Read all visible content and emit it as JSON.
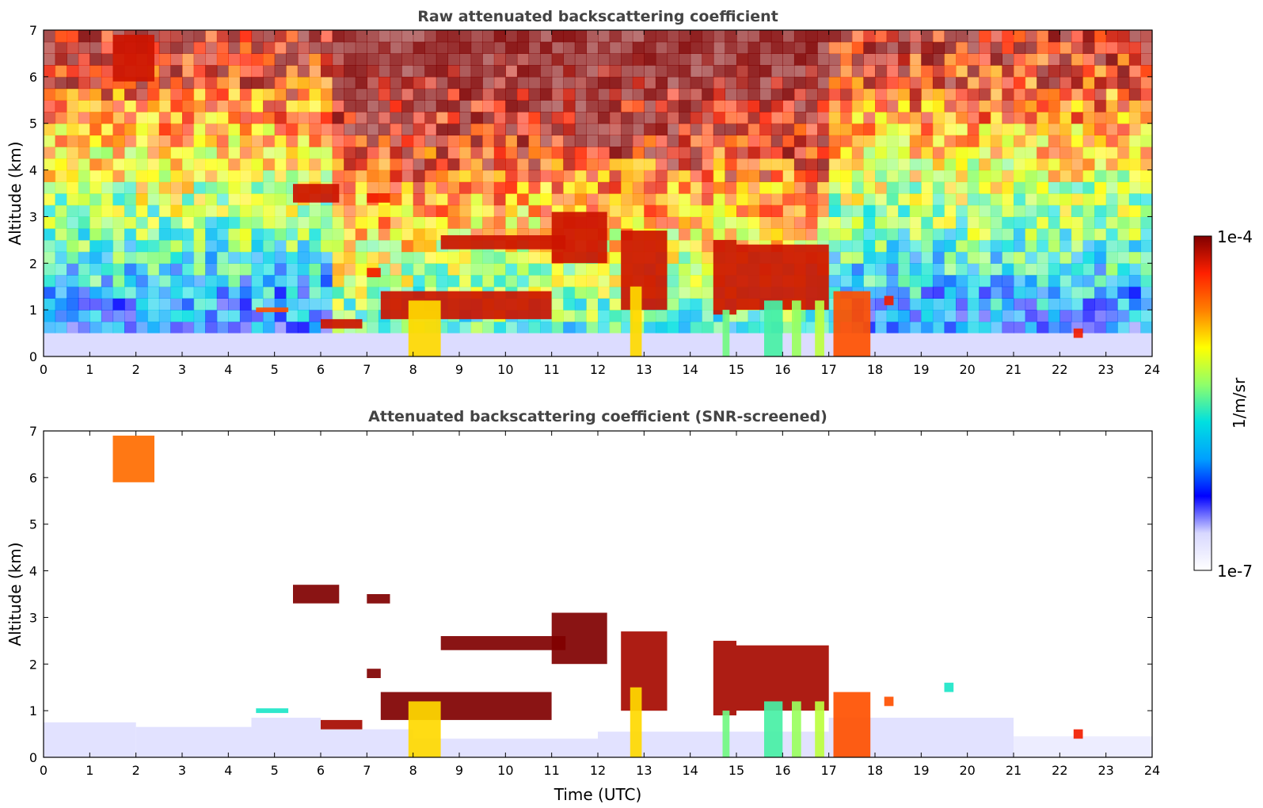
{
  "colors": {
    "background": "#ffffff",
    "axis": "#000000",
    "title_text": "#444444",
    "colormap": [
      "#ffffff",
      "#d8d8ff",
      "#0000ff",
      "#00a0ff",
      "#00e0e0",
      "#8fff6a",
      "#ffff00",
      "#ff8000",
      "#ff2000",
      "#800000"
    ]
  },
  "colorbar": {
    "label": "1/m/sr",
    "max_label": "1e-4",
    "min_label": "1e-7",
    "scale": "log",
    "range": [
      1e-07,
      0.0001
    ]
  },
  "chart_data": [
    {
      "type": "heatmap",
      "title": "Raw attenuated backscattering coefficient",
      "xlabel": "",
      "ylabel": "Altitude (km)",
      "xlim": [
        0,
        24
      ],
      "ylim": [
        0,
        7
      ],
      "x_ticks": [
        0,
        1,
        2,
        3,
        4,
        5,
        6,
        7,
        8,
        9,
        10,
        11,
        12,
        13,
        14,
        15,
        16,
        17,
        18,
        19,
        20,
        21,
        22,
        23,
        24
      ],
      "y_ticks": [
        0,
        1,
        2,
        3,
        4,
        5,
        6,
        7
      ],
      "grid": false,
      "background": "noisy",
      "features": [
        {
          "kind": "boundary_layer",
          "t": [
            0,
            24
          ],
          "z": [
            0,
            0.5
          ],
          "log_value": -6.7
        },
        {
          "kind": "aerosol_layer",
          "t": [
            4.6,
            5.3
          ],
          "z": [
            0.95,
            1.05
          ],
          "log_value": -4.5
        },
        {
          "kind": "cloud",
          "t": [
            1.5,
            2.4
          ],
          "z": [
            5.9,
            6.9
          ],
          "log_value": -4.2
        },
        {
          "kind": "cloud",
          "t": [
            5.4,
            6.4
          ],
          "z": [
            3.3,
            3.7
          ],
          "log_value": -4.2
        },
        {
          "kind": "cloud",
          "t": [
            7.0,
            7.5
          ],
          "z": [
            3.3,
            3.5
          ],
          "log_value": -4.3
        },
        {
          "kind": "cloud",
          "t": [
            6.0,
            6.9
          ],
          "z": [
            0.6,
            0.8
          ],
          "log_value": -4.2
        },
        {
          "kind": "cloud",
          "t": [
            7.0,
            7.3
          ],
          "z": [
            1.7,
            1.9
          ],
          "log_value": -4.3
        },
        {
          "kind": "cloud",
          "t": [
            7.3,
            11.0
          ],
          "z": [
            0.8,
            1.4
          ],
          "log_value": -4.2
        },
        {
          "kind": "cloud",
          "t": [
            8.6,
            11.3
          ],
          "z": [
            2.3,
            2.6
          ],
          "log_value": -4.2
        },
        {
          "kind": "cloud",
          "t": [
            11.0,
            12.2
          ],
          "z": [
            2.0,
            3.1
          ],
          "log_value": -4.2
        },
        {
          "kind": "cloud",
          "t": [
            12.5,
            13.5
          ],
          "z": [
            1.0,
            2.7
          ],
          "log_value": -4.2
        },
        {
          "kind": "cloud",
          "t": [
            14.5,
            15.0
          ],
          "z": [
            0.9,
            2.5
          ],
          "log_value": -4.2
        },
        {
          "kind": "cloud",
          "t": [
            15.0,
            17.0
          ],
          "z": [
            1.0,
            2.4
          ],
          "log_value": -4.2
        },
        {
          "kind": "cloud",
          "t": [
            18.2,
            18.4
          ],
          "z": [
            1.1,
            1.3
          ],
          "log_value": -4.3
        },
        {
          "kind": "cloud",
          "t": [
            22.3,
            22.5
          ],
          "z": [
            0.4,
            0.6
          ],
          "log_value": -4.3
        },
        {
          "kind": "precipitation",
          "t": [
            7.9,
            8.6
          ],
          "z": [
            0,
            1.2
          ],
          "log_value": -4.9
        },
        {
          "kind": "precipitation",
          "t": [
            12.7,
            12.95
          ],
          "z": [
            0,
            1.5
          ],
          "log_value": -4.9
        },
        {
          "kind": "precipitation",
          "t": [
            14.7,
            14.85
          ],
          "z": [
            0,
            1.0
          ],
          "log_value": -5.4
        },
        {
          "kind": "precipitation",
          "t": [
            15.6,
            16.0
          ],
          "z": [
            0,
            1.2
          ],
          "log_value": -5.5
        },
        {
          "kind": "precipitation",
          "t": [
            16.2,
            16.4
          ],
          "z": [
            0,
            1.2
          ],
          "log_value": -5.3
        },
        {
          "kind": "precipitation",
          "t": [
            16.7,
            16.9
          ],
          "z": [
            0,
            1.2
          ],
          "log_value": -5.2
        },
        {
          "kind": "precipitation",
          "t": [
            17.1,
            17.9
          ],
          "z": [
            0,
            1.4
          ],
          "log_value": -4.5
        }
      ]
    },
    {
      "type": "heatmap",
      "title": "Attenuated backscattering coefficient (SNR-screened)",
      "xlabel": "Time (UTC)",
      "ylabel": "Altitude (km)",
      "xlim": [
        0,
        24
      ],
      "ylim": [
        0,
        7
      ],
      "x_ticks": [
        0,
        1,
        2,
        3,
        4,
        5,
        6,
        7,
        8,
        9,
        10,
        11,
        12,
        13,
        14,
        15,
        16,
        17,
        18,
        19,
        20,
        21,
        22,
        23,
        24
      ],
      "y_ticks": [
        0,
        1,
        2,
        3,
        4,
        5,
        6,
        7
      ],
      "grid": false,
      "background": "screened",
      "features": [
        {
          "kind": "boundary_layer",
          "t": [
            0,
            2
          ],
          "z": [
            0,
            0.75
          ],
          "log_value": -6.75
        },
        {
          "kind": "boundary_layer",
          "t": [
            2,
            4.5
          ],
          "z": [
            0,
            0.65
          ],
          "log_value": -6.75
        },
        {
          "kind": "boundary_layer",
          "t": [
            4.5,
            6
          ],
          "z": [
            0,
            0.85
          ],
          "log_value": -6.75
        },
        {
          "kind": "boundary_layer",
          "t": [
            6,
            8
          ],
          "z": [
            0,
            0.6
          ],
          "log_value": -6.75
        },
        {
          "kind": "boundary_layer",
          "t": [
            8,
            12
          ],
          "z": [
            0,
            0.4
          ],
          "log_value": -6.75
        },
        {
          "kind": "boundary_layer",
          "t": [
            12,
            17
          ],
          "z": [
            0,
            0.55
          ],
          "log_value": -6.75
        },
        {
          "kind": "boundary_layer",
          "t": [
            17,
            21
          ],
          "z": [
            0,
            0.85
          ],
          "log_value": -6.75
        },
        {
          "kind": "boundary_layer",
          "t": [
            21,
            24
          ],
          "z": [
            0,
            0.45
          ],
          "log_value": -6.85
        },
        {
          "kind": "aerosol_layer",
          "t": [
            4.6,
            5.3
          ],
          "z": [
            0.95,
            1.05
          ],
          "log_value": -5.6
        },
        {
          "kind": "cloud",
          "t": [
            1.5,
            2.4
          ],
          "z": [
            5.9,
            6.9
          ],
          "log_value": -4.6
        },
        {
          "kind": "cloud",
          "t": [
            5.4,
            6.4
          ],
          "z": [
            3.3,
            3.7
          ],
          "log_value": -3.9
        },
        {
          "kind": "cloud",
          "t": [
            7.0,
            7.5
          ],
          "z": [
            3.3,
            3.5
          ],
          "log_value": -3.9
        },
        {
          "kind": "cloud",
          "t": [
            6.0,
            6.9
          ],
          "z": [
            0.6,
            0.8
          ],
          "log_value": -4.1
        },
        {
          "kind": "cloud",
          "t": [
            7.0,
            7.3
          ],
          "z": [
            1.7,
            1.9
          ],
          "log_value": -4.0
        },
        {
          "kind": "cloud",
          "t": [
            7.3,
            11.0
          ],
          "z": [
            0.8,
            1.4
          ],
          "log_value": -4.0
        },
        {
          "kind": "cloud",
          "t": [
            8.6,
            11.3
          ],
          "z": [
            2.3,
            2.6
          ],
          "log_value": -3.9
        },
        {
          "kind": "cloud",
          "t": [
            11.0,
            12.2
          ],
          "z": [
            2.0,
            3.1
          ],
          "log_value": -4.0
        },
        {
          "kind": "cloud",
          "t": [
            12.5,
            13.5
          ],
          "z": [
            1.0,
            2.7
          ],
          "log_value": -4.1
        },
        {
          "kind": "cloud",
          "t": [
            14.5,
            15.0
          ],
          "z": [
            0.9,
            2.5
          ],
          "log_value": -4.1
        },
        {
          "kind": "cloud",
          "t": [
            15.0,
            17.0
          ],
          "z": [
            1.0,
            2.4
          ],
          "log_value": -4.1
        },
        {
          "kind": "cloud",
          "t": [
            18.2,
            18.4
          ],
          "z": [
            1.1,
            1.3
          ],
          "log_value": -4.5
        },
        {
          "kind": "cloud",
          "t": [
            19.5,
            19.7
          ],
          "z": [
            1.4,
            1.6
          ],
          "log_value": -5.6
        },
        {
          "kind": "cloud",
          "t": [
            22.3,
            22.5
          ],
          "z": [
            0.4,
            0.6
          ],
          "log_value": -4.3
        },
        {
          "kind": "precipitation",
          "t": [
            7.9,
            8.6
          ],
          "z": [
            0,
            1.2
          ],
          "log_value": -4.9
        },
        {
          "kind": "precipitation",
          "t": [
            12.7,
            12.95
          ],
          "z": [
            0,
            1.5
          ],
          "log_value": -4.9
        },
        {
          "kind": "precipitation",
          "t": [
            14.7,
            14.85
          ],
          "z": [
            0,
            1.0
          ],
          "log_value": -5.4
        },
        {
          "kind": "precipitation",
          "t": [
            15.6,
            16.0
          ],
          "z": [
            0,
            1.2
          ],
          "log_value": -5.5
        },
        {
          "kind": "precipitation",
          "t": [
            16.2,
            16.4
          ],
          "z": [
            0,
            1.2
          ],
          "log_value": -5.3
        },
        {
          "kind": "precipitation",
          "t": [
            16.7,
            16.9
          ],
          "z": [
            0,
            1.2
          ],
          "log_value": -5.2
        },
        {
          "kind": "precipitation",
          "t": [
            17.1,
            17.9
          ],
          "z": [
            0,
            1.4
          ],
          "log_value": -4.5
        }
      ]
    }
  ]
}
